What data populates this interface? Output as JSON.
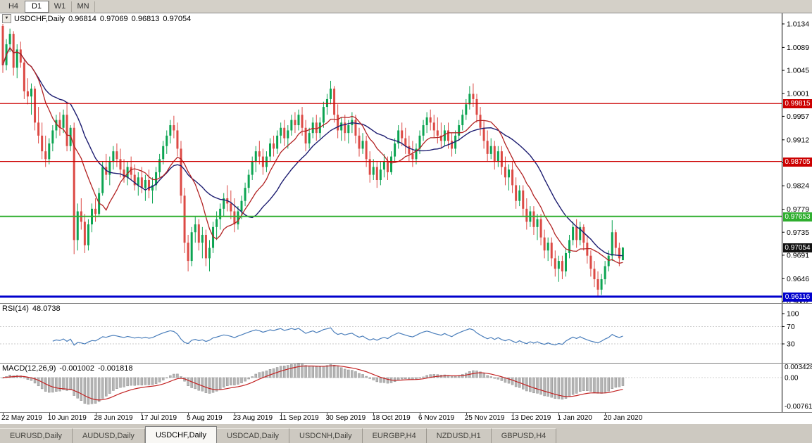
{
  "toolbar": {
    "timeframes": [
      {
        "label": "H4",
        "active": false
      },
      {
        "label": "D1",
        "active": true
      },
      {
        "label": "W1",
        "active": false
      },
      {
        "label": "MN",
        "active": false
      }
    ]
  },
  "chart": {
    "symbol_label": "USDCHF,Daily",
    "ohlc": {
      "open": "0.96814",
      "high": "0.97069",
      "low": "0.96813",
      "close": "0.97054"
    },
    "price_axis": [
      "1.0134",
      "1.0089",
      "1.0045",
      "1.0001",
      "0.9957",
      "0.9912",
      "0.9868",
      "0.9824",
      "0.9779",
      "0.9735",
      "0.9691",
      "0.9646",
      "0.9602"
    ],
    "levels": [
      {
        "label": "0.99815",
        "value": 0.99815,
        "color": "#cc0000",
        "width": 1.2
      },
      {
        "label": "0.98705",
        "value": 0.98705,
        "color": "#cc0000",
        "width": 1.2
      },
      {
        "label": "0.97653",
        "value": 0.97653,
        "color": "#2fae2f",
        "width": 2
      },
      {
        "label": "0.96116",
        "value": 0.96116,
        "color": "#0000cd",
        "width": 3
      }
    ],
    "bid": {
      "label": "0.97054",
      "value": 0.97054,
      "color": "#111111"
    }
  },
  "rsi": {
    "name": "RSI(14)",
    "value": "48.0738",
    "period": 14,
    "axis": [
      "100",
      "70",
      "30"
    ],
    "levels": [
      70,
      30
    ],
    "line_color": "#4a7ebb"
  },
  "macd": {
    "name": "MACD(12,26,9)",
    "value_main": "-0.001002",
    "value_signal": "-0.001818",
    "fast": 12,
    "slow": 26,
    "signal": 9,
    "axis_top": "0.003428",
    "axis_zero": "0.00",
    "axis_bottom": "-0.007615",
    "hist_color": "#b5b5b5",
    "signal_color": "#c22222"
  },
  "tabs": [
    {
      "label": "EURUSD,Daily",
      "active": false
    },
    {
      "label": "AUDUSD,Daily",
      "active": false
    },
    {
      "label": "USDCHF,Daily",
      "active": true
    },
    {
      "label": "USDCAD,Daily",
      "active": false
    },
    {
      "label": "USDCNH,Daily",
      "active": false
    },
    {
      "label": "EURGBP,H4",
      "active": false
    },
    {
      "label": "NZDUSD,H1",
      "active": false
    },
    {
      "label": "GBPUSD,H4",
      "active": false
    }
  ],
  "chart_data": {
    "type": "candlestick",
    "title": "USDCHF Daily",
    "ylim": [
      0.9602,
      1.0134
    ],
    "up_color": "#0ca452",
    "down_color": "#dc4a45",
    "ma_fast": {
      "period": 10,
      "color": "#b22222"
    },
    "ma_slow": {
      "period": 21,
      "color": "#1c1c70"
    },
    "x_ticks": [
      {
        "bar": 0,
        "label": "22 May 2019"
      },
      {
        "bar": 13,
        "label": "10 Jun 2019"
      },
      {
        "bar": 26,
        "label": "28 Jun 2019"
      },
      {
        "bar": 39,
        "label": "17 Jul 2019"
      },
      {
        "bar": 52,
        "label": "5 Aug 2019"
      },
      {
        "bar": 65,
        "label": "23 Aug 2019"
      },
      {
        "bar": 78,
        "label": "11 Sep 2019"
      },
      {
        "bar": 91,
        "label": "30 Sep 2019"
      },
      {
        "bar": 104,
        "label": "18 Oct 2019"
      },
      {
        "bar": 117,
        "label": "6 Nov 2019"
      },
      {
        "bar": 130,
        "label": "25 Nov 2019"
      },
      {
        "bar": 143,
        "label": "13 Dec 2019"
      },
      {
        "bar": 156,
        "label": "1 Jan 2020"
      },
      {
        "bar": 169,
        "label": "20 Jan 2020"
      }
    ],
    "candles": [
      [
        1.013,
        1.0134,
        1.004,
        1.0055
      ],
      [
        1.0055,
        1.0105,
        1.0045,
        1.0095
      ],
      [
        1.0095,
        1.0125,
        1.008,
        1.0115
      ],
      [
        1.0115,
        1.012,
        1.0035,
        1.005
      ],
      [
        1.005,
        1.0095,
        1.003,
        1.0085
      ],
      [
        1.0085,
        1.01,
        1.005,
        1.006
      ],
      [
        1.006,
        1.0065,
        0.999,
        1.0005
      ],
      [
        1.0005,
        1.003,
        0.998,
        0.9995
      ],
      [
        0.9995,
        1.002,
        0.996,
        1.001
      ],
      [
        1.001,
        1.0015,
        0.993,
        0.9945
      ],
      [
        0.9945,
        0.9975,
        0.9905,
        0.992
      ],
      [
        0.992,
        0.9945,
        0.9875,
        0.989
      ],
      [
        0.989,
        0.992,
        0.986,
        0.9875
      ],
      [
        0.9875,
        0.9915,
        0.9865,
        0.9905
      ],
      [
        0.9905,
        0.994,
        0.989,
        0.993
      ],
      [
        0.993,
        0.996,
        0.9915,
        0.995
      ],
      [
        0.995,
        0.9965,
        0.992,
        0.9935
      ],
      [
        0.9935,
        0.997,
        0.9925,
        0.996
      ],
      [
        0.996,
        0.9985,
        0.989,
        0.99
      ],
      [
        0.99,
        0.994,
        0.989,
        0.9935
      ],
      [
        0.9935,
        0.9945,
        0.9693,
        0.972
      ],
      [
        0.972,
        0.979,
        0.97,
        0.9775
      ],
      [
        0.9775,
        0.98,
        0.974,
        0.9755
      ],
      [
        0.9755,
        0.977,
        0.9695,
        0.971
      ],
      [
        0.971,
        0.976,
        0.97,
        0.975
      ],
      [
        0.975,
        0.979,
        0.9735,
        0.978
      ],
      [
        0.978,
        0.98,
        0.9755,
        0.977
      ],
      [
        0.977,
        0.982,
        0.9765,
        0.981
      ],
      [
        0.981,
        0.987,
        0.9805,
        0.986
      ],
      [
        0.986,
        0.9885,
        0.9835,
        0.9845
      ],
      [
        0.9845,
        0.988,
        0.9825,
        0.987
      ],
      [
        0.987,
        0.99,
        0.9855,
        0.989
      ],
      [
        0.989,
        0.9905,
        0.986,
        0.9875
      ],
      [
        0.9875,
        0.9895,
        0.984,
        0.9855
      ],
      [
        0.9855,
        0.9875,
        0.983,
        0.984
      ],
      [
        0.984,
        0.987,
        0.9825,
        0.986
      ],
      [
        0.986,
        0.988,
        0.9835,
        0.9845
      ],
      [
        0.9845,
        0.9865,
        0.9815,
        0.9825
      ],
      [
        0.9825,
        0.985,
        0.9805,
        0.984
      ],
      [
        0.984,
        0.986,
        0.981,
        0.982
      ],
      [
        0.982,
        0.9845,
        0.9795,
        0.9835
      ],
      [
        0.9835,
        0.9855,
        0.98,
        0.9815
      ],
      [
        0.9815,
        0.984,
        0.979,
        0.9825
      ],
      [
        0.9825,
        0.986,
        0.9815,
        0.985
      ],
      [
        0.985,
        0.9885,
        0.984,
        0.9875
      ],
      [
        0.9875,
        0.991,
        0.9865,
        0.99
      ],
      [
        0.99,
        0.993,
        0.9885,
        0.992
      ],
      [
        0.992,
        0.995,
        0.9905,
        0.994
      ],
      [
        0.994,
        0.9958,
        0.9915,
        0.993
      ],
      [
        0.993,
        0.9945,
        0.988,
        0.9895
      ],
      [
        0.9895,
        0.991,
        0.979,
        0.9805
      ],
      [
        0.9805,
        0.982,
        0.9695,
        0.9715
      ],
      [
        0.9715,
        0.973,
        0.966,
        0.968
      ],
      [
        0.968,
        0.9745,
        0.967,
        0.9735
      ],
      [
        0.9735,
        0.9765,
        0.9715,
        0.975
      ],
      [
        0.975,
        0.976,
        0.97,
        0.9715
      ],
      [
        0.9715,
        0.9745,
        0.9685,
        0.973
      ],
      [
        0.973,
        0.974,
        0.967,
        0.9685
      ],
      [
        0.9685,
        0.972,
        0.966,
        0.9705
      ],
      [
        0.9705,
        0.9755,
        0.9695,
        0.9745
      ],
      [
        0.9745,
        0.9775,
        0.972,
        0.976
      ],
      [
        0.976,
        0.979,
        0.974,
        0.978
      ],
      [
        0.978,
        0.981,
        0.9765,
        0.98
      ],
      [
        0.98,
        0.9825,
        0.9775,
        0.979
      ],
      [
        0.979,
        0.9815,
        0.976,
        0.9775
      ],
      [
        0.9775,
        0.98,
        0.9735,
        0.975
      ],
      [
        0.975,
        0.9785,
        0.974,
        0.9775
      ],
      [
        0.9775,
        0.9805,
        0.976,
        0.9795
      ],
      [
        0.9795,
        0.983,
        0.9785,
        0.982
      ],
      [
        0.982,
        0.9855,
        0.981,
        0.9845
      ],
      [
        0.9845,
        0.988,
        0.9835,
        0.987
      ],
      [
        0.987,
        0.99,
        0.985,
        0.989
      ],
      [
        0.989,
        0.991,
        0.9865,
        0.988
      ],
      [
        0.988,
        0.9895,
        0.9845,
        0.986
      ],
      [
        0.986,
        0.989,
        0.985,
        0.988
      ],
      [
        0.988,
        0.9915,
        0.987,
        0.9905
      ],
      [
        0.9905,
        0.992,
        0.988,
        0.9895
      ],
      [
        0.9895,
        0.993,
        0.9885,
        0.992
      ],
      [
        0.992,
        0.9945,
        0.9905,
        0.9935
      ],
      [
        0.9935,
        0.995,
        0.99,
        0.9915
      ],
      [
        0.9915,
        0.994,
        0.9895,
        0.993
      ],
      [
        0.993,
        0.996,
        0.992,
        0.995
      ],
      [
        0.995,
        0.9965,
        0.9925,
        0.994
      ],
      [
        0.994,
        0.997,
        0.993,
        0.996
      ],
      [
        0.996,
        0.9975,
        0.992,
        0.9935
      ],
      [
        0.9935,
        0.995,
        0.989,
        0.9905
      ],
      [
        0.9905,
        0.9935,
        0.9895,
        0.9925
      ],
      [
        0.9925,
        0.9955,
        0.9915,
        0.9945
      ],
      [
        0.9945,
        0.996,
        0.991,
        0.9925
      ],
      [
        0.9925,
        0.9955,
        0.9915,
        0.9945
      ],
      [
        0.9945,
        0.9985,
        0.9935,
        0.9975
      ],
      [
        0.9975,
        1.0,
        0.996,
        0.999
      ],
      [
        0.999,
        1.0025,
        0.998,
        1.001
      ],
      [
        1.001,
        1.0015,
        0.9945,
        0.996
      ],
      [
        0.996,
        0.998,
        0.9915,
        0.993
      ],
      [
        0.993,
        0.9955,
        0.991,
        0.9945
      ],
      [
        0.9945,
        0.996,
        0.991,
        0.9925
      ],
      [
        0.9925,
        0.995,
        0.9905,
        0.994
      ],
      [
        0.994,
        0.9965,
        0.9925,
        0.995
      ],
      [
        0.995,
        0.996,
        0.9905,
        0.992
      ],
      [
        0.992,
        0.9935,
        0.988,
        0.9895
      ],
      [
        0.9895,
        0.9925,
        0.9885,
        0.991
      ],
      [
        0.991,
        0.992,
        0.986,
        0.9875
      ],
      [
        0.9875,
        0.989,
        0.983,
        0.9845
      ],
      [
        0.9845,
        0.9875,
        0.9835,
        0.986
      ],
      [
        0.986,
        0.987,
        0.982,
        0.9835
      ],
      [
        0.9835,
        0.987,
        0.9825,
        0.9855
      ],
      [
        0.9855,
        0.9885,
        0.984,
        0.987
      ],
      [
        0.987,
        0.988,
        0.9835,
        0.985
      ],
      [
        0.985,
        0.989,
        0.9845,
        0.988
      ],
      [
        0.988,
        0.9915,
        0.987,
        0.9905
      ],
      [
        0.9905,
        0.994,
        0.9895,
        0.993
      ],
      [
        0.993,
        0.9945,
        0.99,
        0.9915
      ],
      [
        0.9915,
        0.9935,
        0.9885,
        0.99
      ],
      [
        0.99,
        0.992,
        0.987,
        0.9885
      ],
      [
        0.9885,
        0.991,
        0.986,
        0.9875
      ],
      [
        0.9875,
        0.9905,
        0.9865,
        0.9895
      ],
      [
        0.9895,
        0.993,
        0.9885,
        0.992
      ],
      [
        0.992,
        0.995,
        0.991,
        0.994
      ],
      [
        0.994,
        0.9965,
        0.9925,
        0.9955
      ],
      [
        0.9955,
        0.997,
        0.993,
        0.9945
      ],
      [
        0.9945,
        0.996,
        0.9915,
        0.993
      ],
      [
        0.993,
        0.9955,
        0.9905,
        0.992
      ],
      [
        0.992,
        0.9945,
        0.9895,
        0.991
      ],
      [
        0.991,
        0.994,
        0.99,
        0.993
      ],
      [
        0.993,
        0.9945,
        0.9895,
        0.991
      ],
      [
        0.991,
        0.9925,
        0.988,
        0.9895
      ],
      [
        0.9895,
        0.993,
        0.9885,
        0.992
      ],
      [
        0.992,
        0.995,
        0.991,
        0.994
      ],
      [
        0.994,
        0.997,
        0.993,
        0.996
      ],
      [
        0.996,
        0.999,
        0.995,
        0.998
      ],
      [
        0.998,
        1.0015,
        0.997,
        1.0
      ],
      [
        1.0,
        1.002,
        0.9975,
        0.999
      ],
      [
        0.999,
        1.0,
        0.9945,
        0.996
      ],
      [
        0.996,
        0.9975,
        0.992,
        0.9935
      ],
      [
        0.9935,
        0.995,
        0.9895,
        0.991
      ],
      [
        0.991,
        0.993,
        0.987,
        0.9885
      ],
      [
        0.9885,
        0.9915,
        0.9875,
        0.99
      ],
      [
        0.99,
        0.991,
        0.9855,
        0.987
      ],
      [
        0.987,
        0.99,
        0.986,
        0.989
      ],
      [
        0.989,
        0.99,
        0.9845,
        0.986
      ],
      [
        0.986,
        0.988,
        0.9825,
        0.984
      ],
      [
        0.984,
        0.9865,
        0.9815,
        0.9855
      ],
      [
        0.9855,
        0.987,
        0.981,
        0.9825
      ],
      [
        0.9825,
        0.984,
        0.978,
        0.9795
      ],
      [
        0.9795,
        0.9825,
        0.9785,
        0.9815
      ],
      [
        0.9815,
        0.9825,
        0.9765,
        0.978
      ],
      [
        0.978,
        0.98,
        0.974,
        0.9755
      ],
      [
        0.9755,
        0.9785,
        0.9745,
        0.9775
      ],
      [
        0.9775,
        0.9785,
        0.973,
        0.9745
      ],
      [
        0.9745,
        0.977,
        0.972,
        0.976
      ],
      [
        0.976,
        0.977,
        0.971,
        0.9725
      ],
      [
        0.9725,
        0.974,
        0.9685,
        0.97
      ],
      [
        0.97,
        0.9725,
        0.968,
        0.9715
      ],
      [
        0.9715,
        0.9725,
        0.967,
        0.9685
      ],
      [
        0.9685,
        0.97,
        0.965,
        0.9665
      ],
      [
        0.9665,
        0.969,
        0.964,
        0.968
      ],
      [
        0.968,
        0.969,
        0.9645,
        0.966
      ],
      [
        0.966,
        0.9705,
        0.965,
        0.9695
      ],
      [
        0.9695,
        0.973,
        0.9685,
        0.972
      ],
      [
        0.972,
        0.9755,
        0.971,
        0.9745
      ],
      [
        0.9745,
        0.976,
        0.9705,
        0.972
      ],
      [
        0.972,
        0.9755,
        0.971,
        0.9745
      ],
      [
        0.9745,
        0.975,
        0.97,
        0.9715
      ],
      [
        0.9715,
        0.973,
        0.9675,
        0.969
      ],
      [
        0.969,
        0.97,
        0.965,
        0.9665
      ],
      [
        0.9665,
        0.968,
        0.963,
        0.9645
      ],
      [
        0.9645,
        0.966,
        0.96116,
        0.9625
      ],
      [
        0.9625,
        0.9655,
        0.9615,
        0.9645
      ],
      [
        0.9645,
        0.968,
        0.9635,
        0.967
      ],
      [
        0.967,
        0.97,
        0.966,
        0.969
      ],
      [
        0.969,
        0.9758,
        0.968,
        0.9735
      ],
      [
        0.9735,
        0.974,
        0.969,
        0.9705
      ],
      [
        0.9705,
        0.9715,
        0.967,
        0.9685
      ],
      [
        0.96814,
        0.97069,
        0.96813,
        0.97054
      ]
    ]
  }
}
